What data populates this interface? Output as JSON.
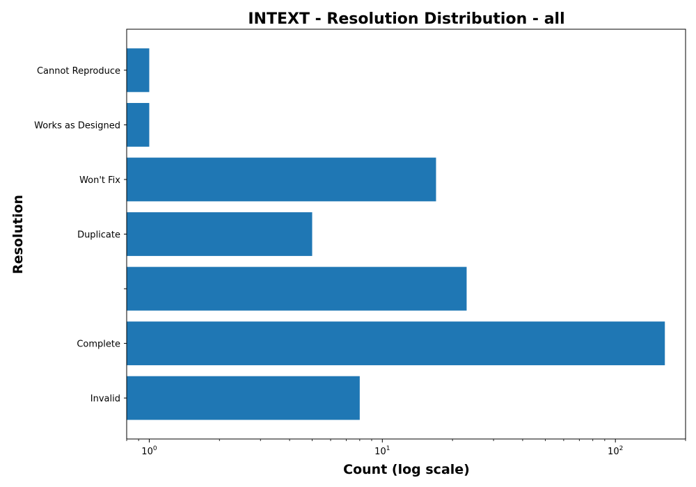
{
  "chart_data": {
    "type": "bar",
    "orientation": "horizontal",
    "title": "INTEXT - Resolution Distribution - all",
    "xlabel": "Count (log scale)",
    "ylabel": "Resolution",
    "xscale": "log",
    "xlim": [
      0.8,
      200
    ],
    "grid": false,
    "bar_color": "#1f77b4",
    "categories": [
      "Invalid",
      "Complete",
      "",
      "Duplicate",
      "Won't Fix",
      "Works as Designed",
      "Cannot Reproduce"
    ],
    "values": [
      8,
      163,
      23,
      5,
      17,
      1,
      1
    ],
    "x_ticks": [
      {
        "base": "10",
        "exp": "0"
      },
      {
        "base": "10",
        "exp": "1"
      },
      {
        "base": "10",
        "exp": "2"
      }
    ]
  }
}
